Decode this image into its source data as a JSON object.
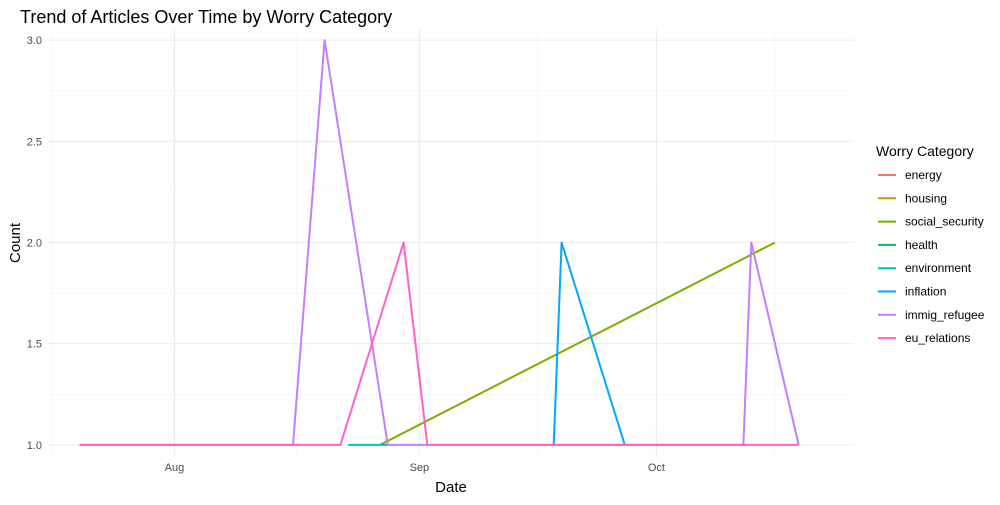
{
  "chart_data": {
    "type": "line",
    "title": "Trend of Articles Over Time by Worry Category",
    "xlabel": "Date",
    "ylabel": "Count",
    "x_axis_type": "date",
    "x_ticks": [
      {
        "date": "2023-08-01",
        "label": "Aug"
      },
      {
        "date": "2023-09-01",
        "label": "Sep"
      },
      {
        "date": "2023-10-01",
        "label": "Oct"
      }
    ],
    "xlim": [
      "2023-07-16",
      "2023-10-26"
    ],
    "y_ticks": [
      1.0,
      1.5,
      2.0,
      2.5,
      3.0
    ],
    "y_tick_labels": [
      "1.0",
      "1.5",
      "2.0",
      "2.5",
      "3.0"
    ],
    "ylim": [
      0.95,
      3.05
    ],
    "grid": true,
    "legend": {
      "title": "Worry Category",
      "position": "right",
      "entries": [
        "energy",
        "housing",
        "social_security",
        "health",
        "environment",
        "inflation",
        "immig_refugee",
        "eu_relations"
      ]
    },
    "series": [
      {
        "name": "energy",
        "color": "#F8766D",
        "points": []
      },
      {
        "name": "housing",
        "color": "#CD9600",
        "points": []
      },
      {
        "name": "social_security",
        "color": "#7CAE00",
        "points": [
          {
            "x": "2023-08-27",
            "y": 1
          },
          {
            "x": "2023-10-16",
            "y": 2
          }
        ]
      },
      {
        "name": "health",
        "color": "#00BE67",
        "points": []
      },
      {
        "name": "environment",
        "color": "#00BFC4",
        "points": [
          {
            "x": "2023-08-23",
            "y": 1
          },
          {
            "x": "2023-08-28",
            "y": 1
          }
        ]
      },
      {
        "name": "inflation",
        "color": "#00A9FF",
        "points": [
          {
            "x": "2023-09-18",
            "y": 1
          },
          {
            "x": "2023-09-19",
            "y": 2
          },
          {
            "x": "2023-09-27",
            "y": 1
          }
        ]
      },
      {
        "name": "immig_refugee",
        "color": "#C77CFF",
        "points": [
          {
            "x": "2023-07-20",
            "y": 1
          },
          {
            "x": "2023-08-16",
            "y": 1
          },
          {
            "x": "2023-08-20",
            "y": 3
          },
          {
            "x": "2023-08-28",
            "y": 1
          },
          {
            "x": "2023-10-12",
            "y": 1
          },
          {
            "x": "2023-10-13",
            "y": 2
          },
          {
            "x": "2023-10-19",
            "y": 1
          }
        ]
      },
      {
        "name": "eu_relations",
        "color": "#FF61CC",
        "points": [
          {
            "x": "2023-07-20",
            "y": 1
          },
          {
            "x": "2023-08-22",
            "y": 1
          },
          {
            "x": "2023-08-30",
            "y": 2
          },
          {
            "x": "2023-09-02",
            "y": 1
          },
          {
            "x": "2023-10-19",
            "y": 1
          }
        ]
      }
    ]
  }
}
